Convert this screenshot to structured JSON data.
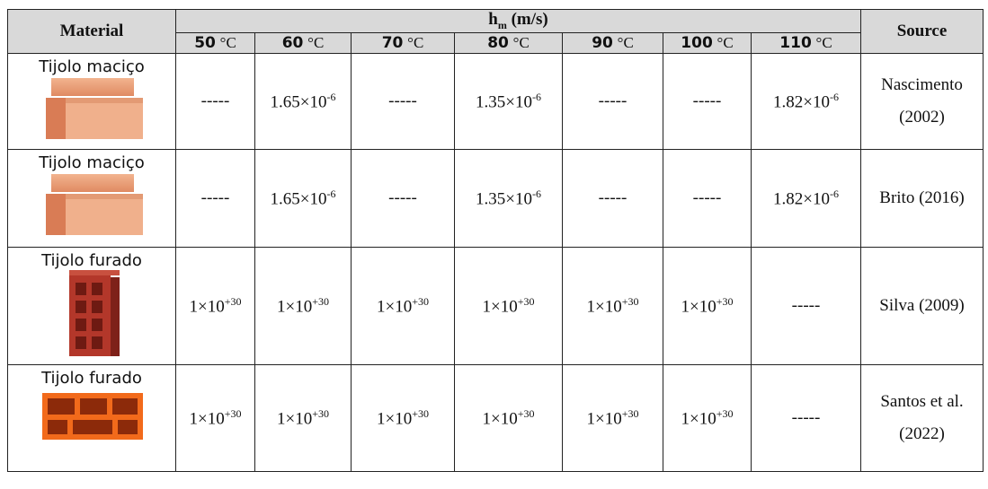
{
  "header": {
    "material": "Material",
    "group": {
      "symbol": "h",
      "subscript": "m",
      "unit": "(m/s)"
    },
    "source": "Source",
    "temperatures": [
      {
        "value": "50",
        "unit": "°C"
      },
      {
        "value": "60",
        "unit": "°C"
      },
      {
        "value": "70",
        "unit": "°C"
      },
      {
        "value": "80",
        "unit": "°C"
      },
      {
        "value": "90",
        "unit": "°C"
      },
      {
        "value": "100",
        "unit": "°C"
      },
      {
        "value": "110",
        "unit": "°C"
      }
    ]
  },
  "rows": [
    {
      "material": "Tijolo maciço",
      "values": [
        "-----",
        {
          "base": "1.65×10",
          "exp": "-6"
        },
        "-----",
        {
          "base": "1.35×10",
          "exp": "-6"
        },
        "-----",
        "-----",
        {
          "base": "1.82×10",
          "exp": "-6"
        }
      ],
      "source": "Nascimento (2002)"
    },
    {
      "material": "Tijolo maciço",
      "values": [
        "-----",
        {
          "base": "1.65×10",
          "exp": "-6"
        },
        "-----",
        {
          "base": "1.35×10",
          "exp": "-6"
        },
        "-----",
        "-----",
        {
          "base": "1.82×10",
          "exp": "-6"
        }
      ],
      "source": "Brito (2016)"
    },
    {
      "material": "Tijolo furado",
      "values": [
        {
          "base": "1×10",
          "exp": "+30"
        },
        {
          "base": "1×10",
          "exp": "+30"
        },
        {
          "base": "1×10",
          "exp": "+30"
        },
        {
          "base": "1×10",
          "exp": "+30"
        },
        {
          "base": "1×10",
          "exp": "+30"
        },
        {
          "base": "1×10",
          "exp": "+30"
        },
        "-----"
      ],
      "source": "Silva (2009)"
    },
    {
      "material": "Tijolo furado",
      "values": [
        {
          "base": "1×10",
          "exp": "+30"
        },
        {
          "base": "1×10",
          "exp": "+30"
        },
        {
          "base": "1×10",
          "exp": "+30"
        },
        {
          "base": "1×10",
          "exp": "+30"
        },
        {
          "base": "1×10",
          "exp": "+30"
        },
        {
          "base": "1×10",
          "exp": "+30"
        },
        "-----"
      ],
      "source": "Santos et al. (2022)"
    }
  ]
}
